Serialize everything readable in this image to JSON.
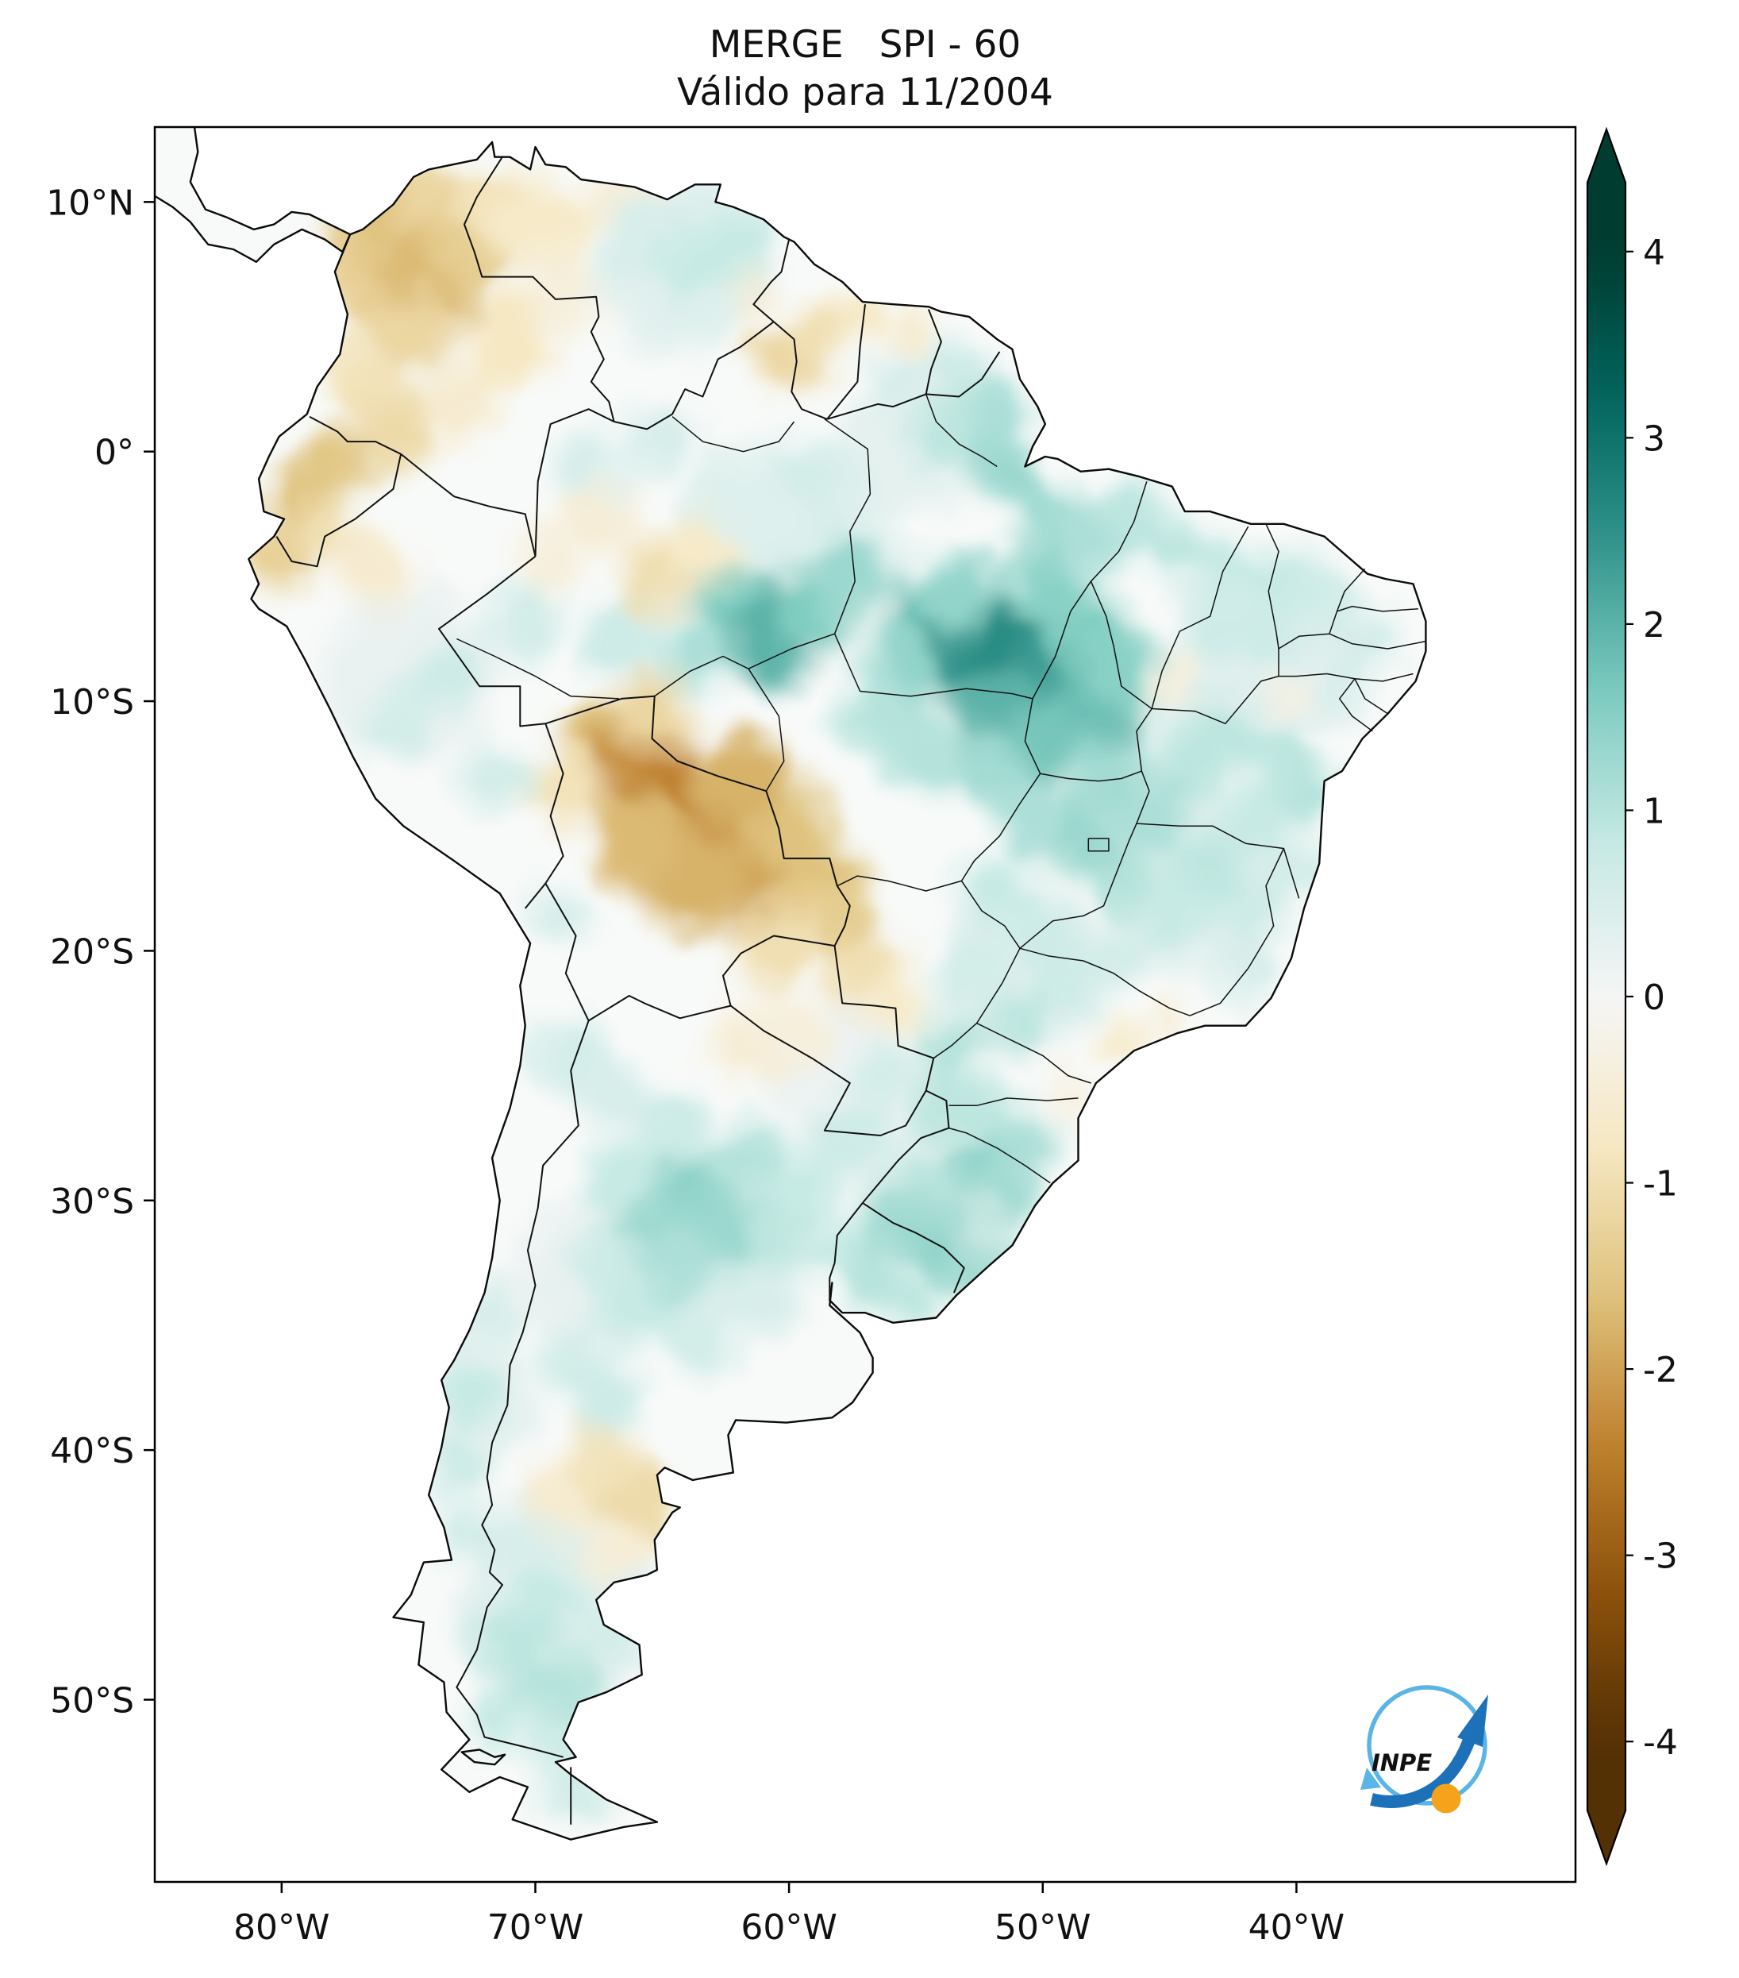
{
  "figure": {
    "title": "MERGE   SPI - 60",
    "subtitle": "Válido para 11/2004"
  },
  "axes": {
    "lat_tick_labels": [
      "10°N",
      "0°",
      "10°S",
      "20°S",
      "30°S",
      "40°S",
      "50°S"
    ],
    "lat_tick_values": [
      10,
      0,
      -10,
      -20,
      -30,
      -40,
      -50
    ],
    "lon_tick_labels": [
      "80°W",
      "70°W",
      "60°W",
      "50°W",
      "40°W"
    ],
    "lon_tick_values": [
      -80,
      -70,
      -60,
      -50,
      -40
    ]
  },
  "colorbar": {
    "tick_labels": [
      "4",
      "3",
      "2",
      "1",
      "0",
      "-1",
      "-2",
      "-3",
      "-4"
    ],
    "tick_values": [
      4,
      3,
      2,
      1,
      0,
      -1,
      -2,
      -3,
      -4
    ],
    "vmin": -4,
    "vmax": 4,
    "extend": "both",
    "colormap_name": "BrBG",
    "colormap_stops": [
      [
        0.0,
        "#543005"
      ],
      [
        0.1,
        "#8c510a"
      ],
      [
        0.2,
        "#bf812d"
      ],
      [
        0.3,
        "#dfc27d"
      ],
      [
        0.4,
        "#f6e8c3"
      ],
      [
        0.5,
        "#f5f5f5"
      ],
      [
        0.6,
        "#c7eae5"
      ],
      [
        0.7,
        "#80cdc1"
      ],
      [
        0.8,
        "#35978f"
      ],
      [
        0.9,
        "#01665e"
      ],
      [
        1.0,
        "#003c30"
      ]
    ]
  },
  "logo": {
    "text": "INPE",
    "circle_color": "#5ab4e5",
    "arrow_color": "#1d71b8",
    "ball_color": "#f7a21b"
  },
  "chart_data": {
    "type": "heatmap",
    "title": "MERGE   SPI - 60",
    "subtitle": "Válido para 11/2004",
    "dataset": "MERGE",
    "index": "SPI-60",
    "valid_for": "11/2004",
    "map_extent": {
      "lon_min": -85,
      "lon_max": -29,
      "lat_min": -57.3,
      "lat_max": 13
    },
    "value_range": [
      -4,
      4
    ],
    "legend_position": "right",
    "regions_summary": [
      "Northwest Colombia / west Venezuela: dry, SPI -1 to -2",
      "Ecuador and far-north Peru coast: dry, SPI -1 to -1.8",
      "Southwest Amazon / north Bolivia / Rondonia-Mato Grosso border: very dry core, SPI -2 to -2.5",
      "Central Amazon (south Amazonas / west Para): wet, SPI +1.5 to +2",
      "East Para / Tocantins / west Maranhao: very wet core, SPI +2 to +2.6",
      "Northeast and east Brazil: weakly wet, SPI 0 to +1",
      "South Brazil and Uruguay: wet, SPI +1 to +1.5",
      "Central Argentina near 30S: wet, SPI +1 to +1.5",
      "North Patagonia near 41S: dry, SPI -0.5 to -1",
      "South Patagonia: weakly wet, SPI +0.5 to +1",
      "Guyana-Roraima border: dry patches, SPI -1"
    ],
    "cell_format": [
      "lon",
      "lat",
      "spi",
      "radius_deg"
    ],
    "cells": [
      [
        -60,
        -4,
        0.4,
        4.5
      ],
      [
        -47,
        -13,
        0.4,
        4.5
      ],
      [
        -41,
        -8,
        0.35,
        4
      ],
      [
        -44,
        -17.5,
        0.35,
        3.5
      ],
      [
        -51,
        -21,
        0.3,
        3.5
      ],
      [
        -54,
        -29,
        0.4,
        3.5
      ],
      [
        -63,
        -31,
        0.4,
        4
      ],
      [
        -64,
        7.5,
        0.35,
        3.5
      ],
      [
        -69,
        -46,
        0.35,
        4
      ],
      [
        -73,
        -38,
        0.3,
        3
      ],
      [
        -55,
        0.8,
        0.3,
        3
      ],
      [
        -75,
        -9,
        0.2,
        3.5
      ],
      [
        -68,
        -33,
        0.2,
        3
      ],
      [
        -58,
        -25,
        0.15,
        3
      ],
      [
        -75.8,
        8.8,
        -1.6,
        2.2
      ],
      [
        -73.9,
        9.9,
        -1.2,
        1.8
      ],
      [
        -76.6,
        6.6,
        -1.3,
        1.8
      ],
      [
        -74.3,
        6.9,
        -1.7,
        2.2
      ],
      [
        -72.6,
        8.3,
        -1.4,
        1.8
      ],
      [
        -71.3,
        9.6,
        -0.9,
        1.6
      ],
      [
        -69.8,
        9,
        -0.7,
        1.8
      ],
      [
        -66.5,
        9.8,
        -0.5,
        1.6
      ],
      [
        -75,
        4.8,
        -1.2,
        1.6
      ],
      [
        -76.8,
        2.9,
        -0.9,
        1.4
      ],
      [
        -75.6,
        1,
        -1.1,
        1.5
      ],
      [
        -77.8,
        -0.6,
        -1.5,
        1.3
      ],
      [
        -79.3,
        -1.8,
        -1.6,
        1.3
      ],
      [
        -80.1,
        -4.2,
        -1.3,
        1.4
      ],
      [
        -78.3,
        -3,
        -1,
        1.3
      ],
      [
        -76.4,
        -4.6,
        -0.6,
        1.5
      ],
      [
        -73,
        2,
        -0.6,
        1.5
      ],
      [
        -71,
        4.5,
        -0.8,
        1.8
      ],
      [
        -68.9,
        6.5,
        -0.4,
        1.6
      ],
      [
        -60.2,
        3.6,
        -1.2,
        1.2
      ],
      [
        -58.9,
        4.6,
        -1,
        1.1
      ],
      [
        -57.2,
        5.5,
        -0.8,
        1
      ],
      [
        -55,
        4.9,
        -0.6,
        1
      ],
      [
        -61.8,
        6.2,
        -0.5,
        1.2
      ],
      [
        -65.2,
        -5,
        -1,
        1.6
      ],
      [
        -63.3,
        -4,
        -0.7,
        1.4
      ],
      [
        -67.5,
        -2.5,
        -0.5,
        1.5
      ],
      [
        -69.5,
        -4.5,
        -0.4,
        1.3
      ],
      [
        -67.2,
        -11.8,
        -1.6,
        1.8
      ],
      [
        -65.8,
        -12.8,
        -2.2,
        2.2
      ],
      [
        -64.2,
        -14.2,
        -2.4,
        2.4
      ],
      [
        -62.6,
        -15.8,
        -2.3,
        2.2
      ],
      [
        -61.2,
        -17.2,
        -2,
        2
      ],
      [
        -63.8,
        -17,
        -1.8,
        2
      ],
      [
        -66,
        -15.5,
        -1.7,
        1.8
      ],
      [
        -60,
        -15.2,
        -1.6,
        1.8
      ],
      [
        -59,
        -17,
        -1.6,
        1.6
      ],
      [
        -58,
        -18.8,
        -1.4,
        1.6
      ],
      [
        -60.6,
        -19.8,
        -1,
        1.6
      ],
      [
        -57,
        -20.8,
        -1,
        1.4
      ],
      [
        -55.9,
        -22.3,
        -0.7,
        1.2
      ],
      [
        -65.4,
        -10.4,
        -1.2,
        1.5
      ],
      [
        -68.8,
        -13.6,
        -0.9,
        1.5
      ],
      [
        -62,
        -13,
        -1.8,
        1.8
      ],
      [
        -61.5,
        -23.8,
        -0.5,
        1.6
      ],
      [
        -59.8,
        -23,
        -0.4,
        1.4
      ],
      [
        -67.5,
        -40.8,
        -0.9,
        1.6
      ],
      [
        -65.9,
        -42.3,
        -1.1,
        1.5
      ],
      [
        -68.9,
        -42,
        -0.6,
        1.4
      ],
      [
        -66.8,
        -44,
        -0.5,
        1.3
      ],
      [
        -46.8,
        -23.6,
        -0.7,
        0.9
      ],
      [
        -44.8,
        -22.8,
        -0.5,
        0.8
      ],
      [
        -48.8,
        -25.8,
        -0.4,
        0.8
      ],
      [
        -44.6,
        -9.2,
        -0.4,
        0.9
      ],
      [
        -40.2,
        -9.8,
        -0.3,
        0.8
      ],
      [
        -62.2,
        -6.6,
        1.6,
        1.6
      ],
      [
        -60.6,
        -7.4,
        2,
        1.8
      ],
      [
        -59,
        -6.2,
        1.6,
        1.6
      ],
      [
        -57.6,
        -4.8,
        1.3,
        1.6
      ],
      [
        -63.6,
        -8,
        1.1,
        1.4
      ],
      [
        -66.5,
        -7.5,
        0.7,
        1.5
      ],
      [
        -70.5,
        -7,
        0.6,
        1.5
      ],
      [
        -73.5,
        -9,
        0.7,
        1.4
      ],
      [
        -75.5,
        -11,
        0.6,
        1.4
      ],
      [
        -71.5,
        -13,
        0.6,
        1.4
      ],
      [
        -54.4,
        -6.8,
        1.8,
        1.8
      ],
      [
        -52.6,
        -7.8,
        2.4,
        2
      ],
      [
        -50.8,
        -8.6,
        2.6,
        2.2
      ],
      [
        -49.2,
        -9.4,
        2.3,
        1.9
      ],
      [
        -51.6,
        -10.6,
        2,
        1.8
      ],
      [
        -49.6,
        -11.6,
        1.7,
        1.6
      ],
      [
        -47.8,
        -10.2,
        1.8,
        1.6
      ],
      [
        -53.4,
        -5.4,
        1.4,
        1.6
      ],
      [
        -55.6,
        -8.8,
        1.4,
        1.6
      ],
      [
        -56.6,
        -10.6,
        1,
        1.5
      ],
      [
        -54.6,
        -11.8,
        1,
        1.6
      ],
      [
        -52,
        -12.8,
        1.2,
        1.5
      ],
      [
        -48,
        -7.4,
        1.6,
        1.5
      ],
      [
        -49.8,
        -5.6,
        1.5,
        1.6
      ],
      [
        -47,
        -8.6,
        1.5,
        1.4
      ],
      [
        -52.2,
        1.2,
        1.1,
        1.5
      ],
      [
        -54,
        0.4,
        0.9,
        1.3
      ],
      [
        -51.4,
        -0.8,
        1.3,
        1.3
      ],
      [
        -50,
        -2.6,
        1.2,
        1.4
      ],
      [
        -48.2,
        -3.6,
        1.1,
        1.4
      ],
      [
        -46.4,
        -2.6,
        0.9,
        1.3
      ],
      [
        -44.8,
        -3.8,
        0.9,
        1.3
      ],
      [
        -64,
        7.6,
        0.8,
        1.6
      ],
      [
        -62.2,
        8.4,
        0.8,
        1.4
      ],
      [
        -66,
        8.8,
        0.5,
        1.5
      ],
      [
        -63,
        5.6,
        0.4,
        1.3
      ],
      [
        -53.2,
        3.4,
        0.7,
        1.2
      ],
      [
        -55.8,
        2.8,
        0.5,
        1.2
      ],
      [
        -59,
        -1,
        0.6,
        1.4
      ],
      [
        -65,
        0.5,
        0.5,
        1.5
      ],
      [
        -68,
        -0.5,
        0.5,
        1.4
      ],
      [
        -42.8,
        -4.6,
        0.8,
        1.3
      ],
      [
        -40.6,
        -5.4,
        0.8,
        1.3
      ],
      [
        -38.6,
        -6.2,
        0.6,
        1.2
      ],
      [
        -36.8,
        -7.6,
        0.6,
        1.1
      ],
      [
        -38,
        -9,
        0.5,
        1.1
      ],
      [
        -41.4,
        -7.2,
        0.7,
        1.3
      ],
      [
        -43.4,
        -7.2,
        0.7,
        1.2
      ],
      [
        -42.8,
        -11.2,
        0.9,
        1.4
      ],
      [
        -40.8,
        -12.4,
        0.9,
        1.3
      ],
      [
        -39.4,
        -13.8,
        1,
        1.2
      ],
      [
        -41.6,
        -14.8,
        0.8,
        1.3
      ],
      [
        -44.2,
        -12.8,
        0.9,
        1.4
      ],
      [
        -45.8,
        -14.6,
        1.1,
        1.4
      ],
      [
        -43.6,
        -16.6,
        0.9,
        1.4
      ],
      [
        -41.8,
        -18.2,
        0.7,
        1.3
      ],
      [
        -44.6,
        -18.6,
        0.8,
        1.4
      ],
      [
        -46.8,
        -17,
        1,
        1.4
      ],
      [
        -48.6,
        -15.6,
        1.3,
        1.5
      ],
      [
        -50.4,
        -14.6,
        1.1,
        1.5
      ],
      [
        -47.4,
        -13,
        1.2,
        1.4
      ],
      [
        -40,
        -16.8,
        0.6,
        1.2
      ],
      [
        -42,
        -20.6,
        0.5,
        1.2
      ],
      [
        -51.8,
        -17.6,
        0.8,
        1.4
      ],
      [
        -50,
        -19.4,
        0.7,
        1.4
      ],
      [
        -52.8,
        -20.6,
        0.6,
        1.4
      ],
      [
        -49,
        -21.4,
        0.7,
        1.4
      ],
      [
        -51,
        -22.8,
        0.9,
        1.3
      ],
      [
        -53.6,
        -23.8,
        1,
        1.3
      ],
      [
        -47,
        -20,
        0.6,
        1.3
      ],
      [
        -52.4,
        -26.4,
        0.9,
        1.3
      ],
      [
        -50.8,
        -27.6,
        1.1,
        1.3
      ],
      [
        -52.8,
        -28.8,
        1.4,
        1.4
      ],
      [
        -51.2,
        -29.8,
        1.2,
        1.2
      ],
      [
        -54.4,
        -29.6,
        1,
        1.4
      ],
      [
        -55.8,
        -31,
        1.2,
        1.4
      ],
      [
        -53.8,
        -31.8,
        1.4,
        1.3
      ],
      [
        -52.6,
        -32.8,
        1.2,
        1.2
      ],
      [
        -56.8,
        -33,
        1,
        1.3
      ],
      [
        -58.2,
        -32,
        0.8,
        1.2
      ],
      [
        -55,
        -34.2,
        0.9,
        1.2
      ],
      [
        -54,
        -26,
        0.9,
        1.2
      ],
      [
        -56.4,
        -25.2,
        0.6,
        1.2
      ],
      [
        -57.6,
        -27.6,
        0.7,
        1.3
      ],
      [
        -59.4,
        -29.4,
        0.8,
        1.4
      ],
      [
        -60.8,
        -31.2,
        0.9,
        1.4
      ],
      [
        -63.8,
        -29.6,
        1.5,
        1.7
      ],
      [
        -65.4,
        -31,
        1.3,
        1.6
      ],
      [
        -62.6,
        -31.4,
        1.3,
        1.5
      ],
      [
        -64.4,
        -32.6,
        1.1,
        1.5
      ],
      [
        -62,
        -28.4,
        1,
        1.5
      ],
      [
        -66.6,
        -29,
        0.8,
        1.4
      ],
      [
        -64.8,
        -27,
        0.7,
        1.4
      ],
      [
        -67.6,
        -32.6,
        0.7,
        1.4
      ],
      [
        -66,
        -34.4,
        0.8,
        1.4
      ],
      [
        -63.6,
        -35.6,
        0.6,
        1.4
      ],
      [
        -61,
        -34,
        0.5,
        1.4
      ],
      [
        -68.4,
        -36.4,
        0.6,
        1.4
      ],
      [
        -67.2,
        -38.2,
        0.7,
        1.4
      ],
      [
        -68.6,
        -24.2,
        0.6,
        1.5
      ],
      [
        -67,
        -25.8,
        0.5,
        1.4
      ],
      [
        -69,
        -18.6,
        0.5,
        1.2
      ],
      [
        -71.8,
        -34.4,
        0.5,
        1.2
      ],
      [
        -72.6,
        -37.8,
        0.8,
        1.3
      ],
      [
        -73,
        -40.6,
        0.7,
        1.2
      ],
      [
        -72.8,
        -43.4,
        0.6,
        1.2
      ],
      [
        -69.6,
        -45.6,
        0.8,
        1.4
      ],
      [
        -70.8,
        -47.8,
        0.9,
        1.4
      ],
      [
        -69.2,
        -49.6,
        1,
        1.4
      ],
      [
        -71.6,
        -50.8,
        0.8,
        1.3
      ],
      [
        -69,
        -51.8,
        0.7,
        1.3
      ],
      [
        -68.2,
        -53.6,
        0.6,
        1.3
      ],
      [
        -70.4,
        -43.6,
        0.5,
        1.2
      ],
      [
        -67.4,
        -47.4,
        0.6,
        1.3
      ]
    ]
  }
}
